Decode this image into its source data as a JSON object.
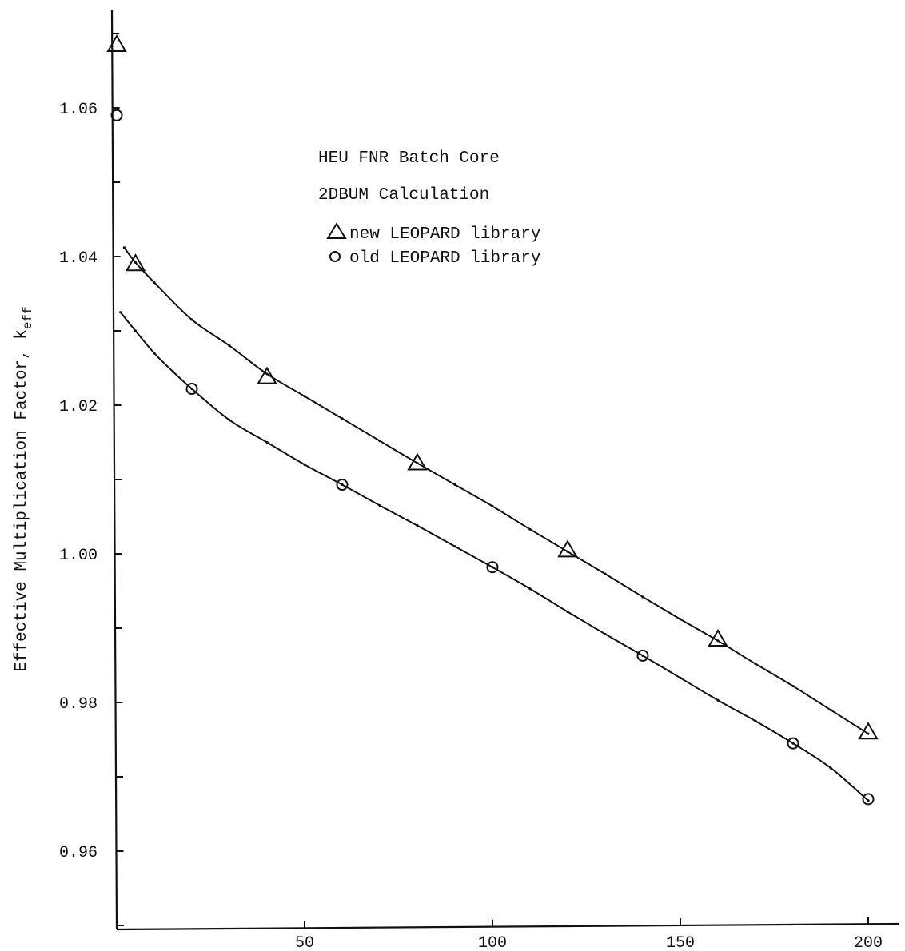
{
  "chart_data": {
    "type": "line",
    "title": "",
    "xlabel": "",
    "ylabel": "Effective Multiplication Factor, k",
    "ylabel_subscript": "eff",
    "xlim": [
      0,
      208
    ],
    "ylim": [
      0.95,
      1.072
    ],
    "x_ticks": [
      50,
      100,
      150,
      200
    ],
    "y_ticks": [
      0.96,
      0.98,
      1.0,
      1.02,
      1.04,
      1.06
    ],
    "x_tick_labels": [
      "50",
      "100",
      "150",
      "200"
    ],
    "y_tick_labels": [
      "0.96",
      "0.98",
      "1.00",
      "1.02",
      "1.04",
      "1.06"
    ],
    "annotations": [
      "HEU FNR Batch Core",
      "2DBUM Calculation"
    ],
    "legend": [
      {
        "marker": "triangle",
        "label": "new LEOPARD library"
      },
      {
        "marker": "circle",
        "label": "old LEOPARD library"
      }
    ],
    "series": [
      {
        "marker": "triangle",
        "points": [
          [
            0,
            1.0685
          ],
          [
            5,
            1.039
          ],
          [
            40,
            1.0238
          ],
          [
            80,
            1.0122
          ],
          [
            120,
            1.0005
          ],
          [
            160,
            0.9885
          ],
          [
            200,
            0.976
          ]
        ],
        "curve": [
          [
            2,
            1.0412
          ],
          [
            5,
            1.0392
          ],
          [
            10,
            1.0365
          ],
          [
            20,
            1.0315
          ],
          [
            30,
            1.028
          ],
          [
            40,
            1.0242
          ],
          [
            50,
            1.0212
          ],
          [
            60,
            1.0182
          ],
          [
            70,
            1.0152
          ],
          [
            80,
            1.0122
          ],
          [
            90,
            1.0093
          ],
          [
            100,
            1.0064
          ],
          [
            110,
            1.0033
          ],
          [
            120,
            1.0003
          ],
          [
            130,
            0.9973
          ],
          [
            140,
            0.9942
          ],
          [
            150,
            0.9912
          ],
          [
            160,
            0.9883
          ],
          [
            170,
            0.9852
          ],
          [
            180,
            0.9822
          ],
          [
            190,
            0.979
          ],
          [
            200,
            0.9758
          ]
        ]
      },
      {
        "marker": "circle",
        "points": [
          [
            0,
            1.059
          ],
          [
            20,
            1.0222
          ],
          [
            60,
            1.0093
          ],
          [
            100,
            0.9982
          ],
          [
            140,
            0.9863
          ],
          [
            180,
            0.9745
          ],
          [
            200,
            0.967
          ]
        ],
        "curve": [
          [
            1,
            1.0325
          ],
          [
            5,
            1.03
          ],
          [
            10,
            1.027
          ],
          [
            15,
            1.0245
          ],
          [
            20,
            1.0222
          ],
          [
            30,
            1.018
          ],
          [
            40,
            1.015
          ],
          [
            50,
            1.012
          ],
          [
            60,
            1.0093
          ],
          [
            70,
            1.0065
          ],
          [
            80,
            1.0038
          ],
          [
            90,
            1.001
          ],
          [
            100,
            0.9982
          ],
          [
            110,
            0.9953
          ],
          [
            120,
            0.9922
          ],
          [
            130,
            0.9892
          ],
          [
            140,
            0.9863
          ],
          [
            150,
            0.9833
          ],
          [
            160,
            0.9803
          ],
          [
            170,
            0.9775
          ],
          [
            180,
            0.9745
          ],
          [
            190,
            0.9712
          ],
          [
            200,
            0.9668
          ]
        ]
      }
    ]
  }
}
